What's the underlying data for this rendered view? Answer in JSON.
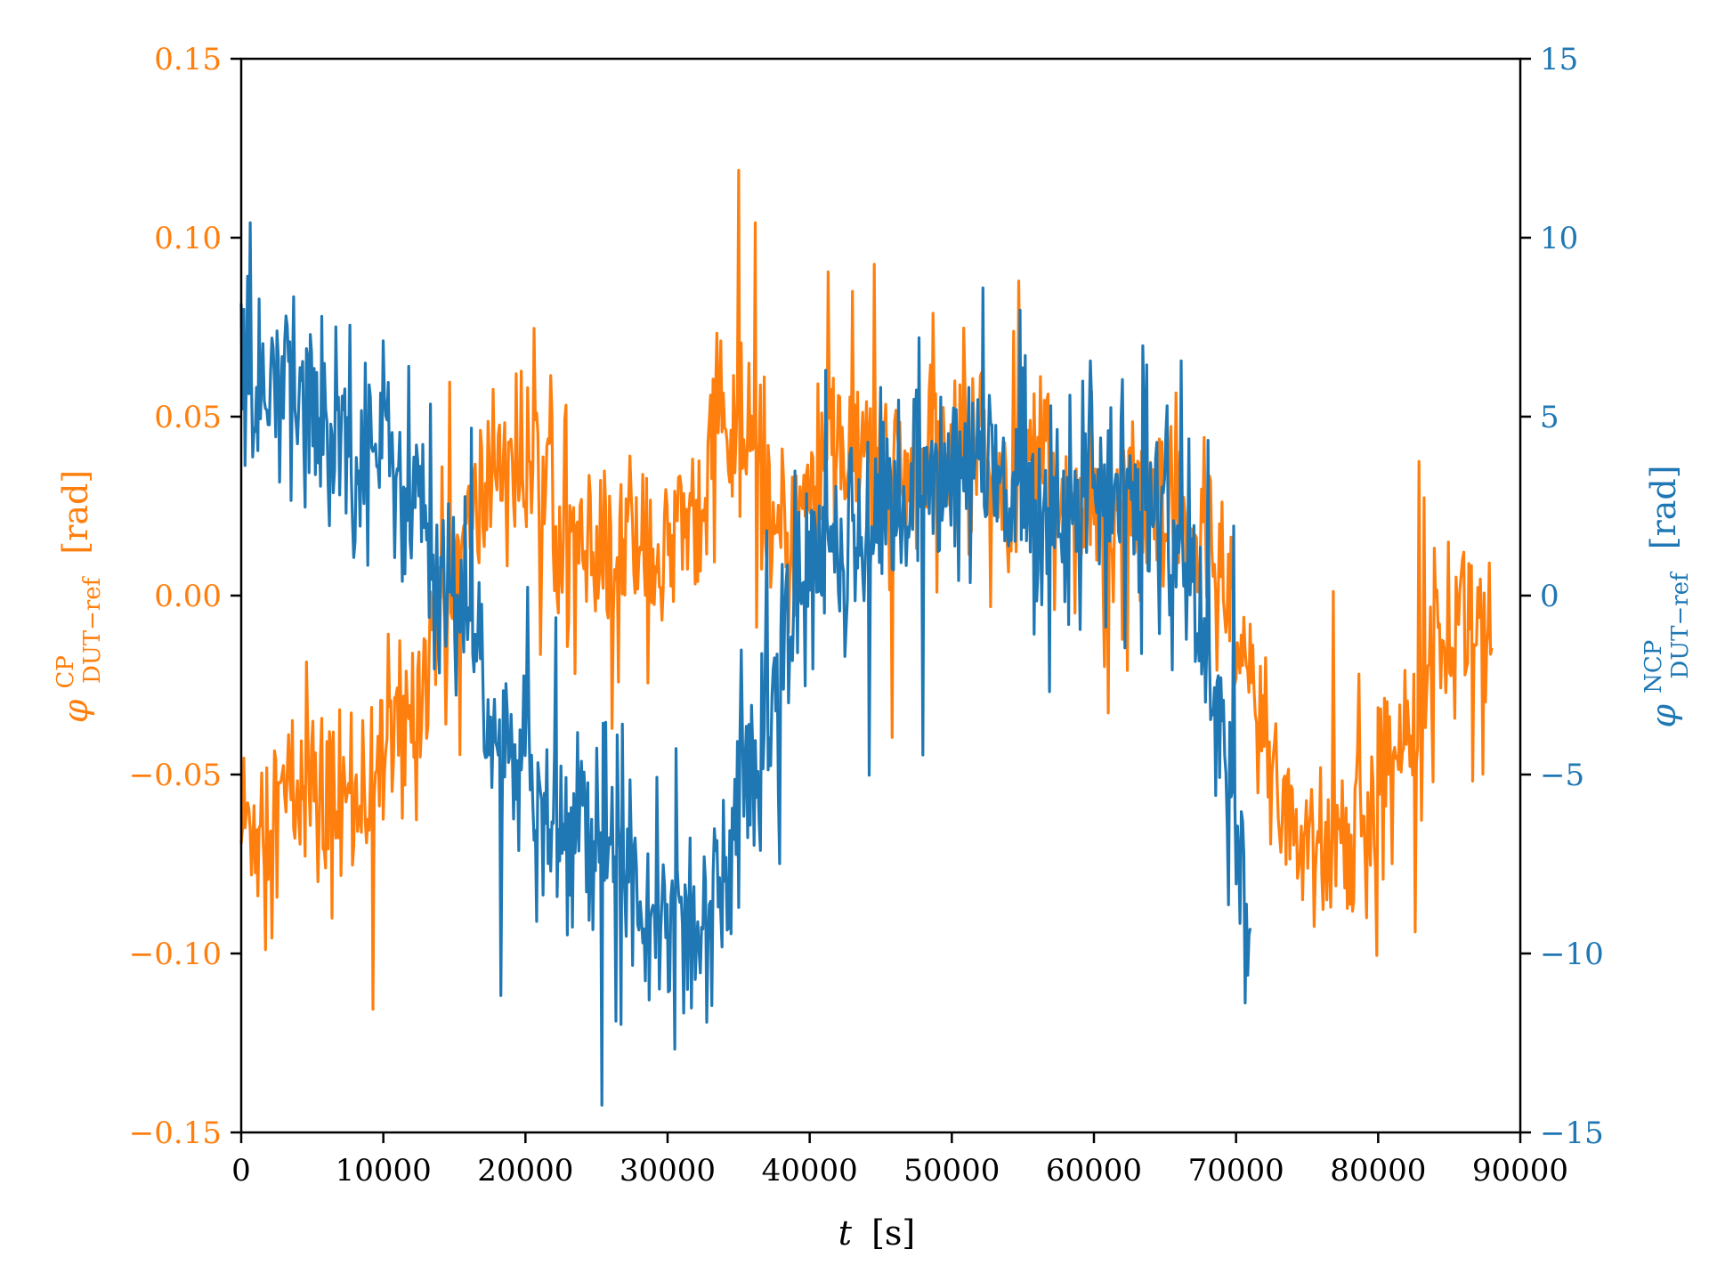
{
  "chart_data": {
    "type": "line",
    "title": "",
    "xlabel": {
      "var": "t",
      "unit": "[s]"
    },
    "ylabel_left": {
      "sym": "φ",
      "sup": "CP",
      "sub": "DUT−ref",
      "unit": "[rad]"
    },
    "ylabel_right": {
      "sym": "φ",
      "sup": "NCP",
      "sub": "DUT−ref",
      "unit": "[rad]"
    },
    "xlim": [
      0,
      90000
    ],
    "ylim_left": [
      -0.15,
      0.15
    ],
    "ylim_right": [
      -15,
      15
    ],
    "grid": false,
    "legend": "none",
    "x_ticks": [
      "0",
      "10000",
      "20000",
      "30000",
      "40000",
      "50000",
      "60000",
      "70000",
      "80000",
      "90000"
    ],
    "y_left_ticks": [
      "−0.15",
      "−0.10",
      "−0.05",
      "0.00",
      "0.05",
      "0.10",
      "0.15"
    ],
    "y_right_ticks": [
      "−15",
      "−10",
      "−5",
      "0",
      "5",
      "10",
      "15"
    ],
    "colors": {
      "cp": "#ff7f0e",
      "ncp": "#1f77b4",
      "axis": "#000000"
    },
    "series": [
      {
        "key": "cp",
        "axis": "left",
        "x": [
          0,
          2000,
          4000,
          6000,
          8000,
          10000,
          12000,
          14000,
          16000,
          18000,
          20000,
          22000,
          24000,
          26000,
          28000,
          30000,
          32000,
          34000,
          36000,
          38000,
          40000,
          42000,
          44000,
          46000,
          48000,
          50000,
          52000,
          54000,
          56000,
          58000,
          60000,
          62000,
          64000,
          66000,
          68000,
          70000,
          72000,
          74000,
          76000,
          78000,
          80000,
          82000,
          84000,
          86000,
          88000
        ],
        "values": [
          -0.065,
          -0.06,
          -0.055,
          -0.06,
          -0.055,
          -0.045,
          -0.035,
          0.0,
          0.015,
          0.04,
          0.035,
          0.03,
          0.01,
          0.005,
          0.02,
          0.005,
          0.03,
          0.045,
          0.04,
          0.01,
          0.03,
          0.04,
          0.04,
          0.03,
          0.035,
          0.04,
          0.045,
          0.03,
          0.04,
          0.025,
          0.02,
          0.025,
          0.02,
          0.02,
          0.015,
          -0.015,
          -0.04,
          -0.065,
          -0.07,
          -0.07,
          -0.06,
          -0.03,
          -0.015,
          -0.005,
          -0.005
        ],
        "spread": 0.025
      },
      {
        "key": "ncp",
        "axis": "right",
        "x": [
          0,
          2000,
          4000,
          6000,
          8000,
          10000,
          12000,
          14000,
          16000,
          18000,
          20000,
          22000,
          24000,
          26000,
          28000,
          30000,
          32000,
          34000,
          36000,
          38000,
          40000,
          42000,
          44000,
          46000,
          48000,
          50000,
          52000,
          54000,
          56000,
          58000,
          60000,
          62000,
          64000,
          66000,
          68000,
          70000,
          71000
        ],
        "values": [
          5.0,
          5.5,
          5.5,
          5.0,
          4.5,
          4.0,
          3.0,
          1.0,
          -1.0,
          -4.0,
          -5.5,
          -6.0,
          -6.5,
          -7.0,
          -8.0,
          -8.5,
          -9.5,
          -7.5,
          -5.0,
          -1.5,
          0.5,
          1.5,
          2.0,
          2.5,
          3.0,
          3.5,
          3.5,
          3.0,
          2.5,
          3.0,
          3.0,
          2.5,
          2.5,
          1.0,
          -2.5,
          -6.0,
          -9.0
        ],
        "spread": 2.8
      }
    ]
  }
}
